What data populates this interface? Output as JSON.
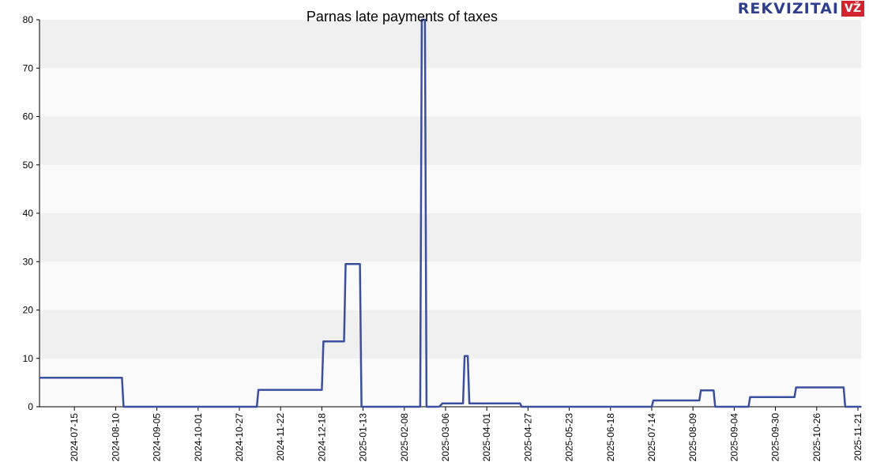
{
  "chart_data": {
    "type": "line",
    "title": "Parnas late payments of taxes",
    "xlabel": "",
    "ylabel": "",
    "ylim": [
      0,
      80
    ],
    "y_ticks": [
      "0",
      "10",
      "20",
      "30",
      "40",
      "50",
      "60",
      "70",
      "80"
    ],
    "x_range": [
      "2024-06-23",
      "2025-11-23"
    ],
    "x_tick_labels": [
      "2024-07-15",
      "2024-08-10",
      "2024-09-05",
      "2024-10-01",
      "2024-10-27",
      "2024-11-22",
      "2024-12-18",
      "2025-01-13",
      "2025-02-08",
      "2025-03-06",
      "2025-04-01",
      "2025-04-27",
      "2025-05-23",
      "2025-06-18",
      "2025-07-14",
      "2025-08-09",
      "2025-09-04",
      "2025-09-30",
      "2025-10-26",
      "2025-11-21"
    ],
    "grid": "horizontal bands",
    "line_color": "#3a4f9e",
    "series": [
      {
        "values": [
          {
            "x": "2024-06-23",
            "y": 6
          },
          {
            "x": "2024-08-14",
            "y": 6
          },
          {
            "x": "2024-08-15",
            "y": 0
          },
          {
            "x": "2024-11-07",
            "y": 0
          },
          {
            "x": "2024-11-08",
            "y": 3.5
          },
          {
            "x": "2024-12-18",
            "y": 3.5
          },
          {
            "x": "2024-12-19",
            "y": 13.5
          },
          {
            "x": "2025-01-01",
            "y": 13.5
          },
          {
            "x": "2025-01-02",
            "y": 29.5
          },
          {
            "x": "2025-01-11",
            "y": 29.5
          },
          {
            "x": "2025-01-12",
            "y": 0
          },
          {
            "x": "2025-02-18",
            "y": 0
          },
          {
            "x": "2025-02-19",
            "y": 80
          },
          {
            "x": "2025-02-21",
            "y": 80
          },
          {
            "x": "2025-02-22",
            "y": 0
          },
          {
            "x": "2025-03-02",
            "y": 0
          },
          {
            "x": "2025-03-04",
            "y": 0.7
          },
          {
            "x": "2025-03-17",
            "y": 0.7
          },
          {
            "x": "2025-03-18",
            "y": 10.5
          },
          {
            "x": "2025-03-20",
            "y": 10.5
          },
          {
            "x": "2025-03-21",
            "y": 0.7
          },
          {
            "x": "2025-04-22",
            "y": 0.7
          },
          {
            "x": "2025-04-23",
            "y": 0
          },
          {
            "x": "2025-07-14",
            "y": 0
          },
          {
            "x": "2025-07-15",
            "y": 1.3
          },
          {
            "x": "2025-08-13",
            "y": 1.3
          },
          {
            "x": "2025-08-14",
            "y": 3.4
          },
          {
            "x": "2025-08-22",
            "y": 3.4
          },
          {
            "x": "2025-08-23",
            "y": 0
          },
          {
            "x": "2025-09-13",
            "y": 0
          },
          {
            "x": "2025-09-14",
            "y": 2
          },
          {
            "x": "2025-10-12",
            "y": 2
          },
          {
            "x": "2025-10-13",
            "y": 4
          },
          {
            "x": "2025-11-12",
            "y": 4
          },
          {
            "x": "2025-11-13",
            "y": 0
          },
          {
            "x": "2025-11-23",
            "y": 0
          }
        ]
      }
    ]
  },
  "logo": {
    "text": "REKVIZITAI",
    "badge": "VŽ"
  }
}
